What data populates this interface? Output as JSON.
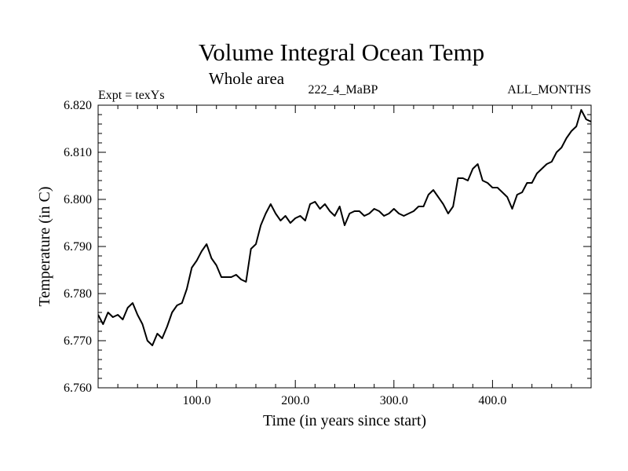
{
  "chart_data": {
    "type": "line",
    "title": "Volume Integral Ocean Temp",
    "subtitle": "Whole area",
    "header_left": "Expt = texYs",
    "header_center": "222_4_MaBP",
    "header_right": "ALL_MONTHS",
    "xlabel": "Time (in years since start)",
    "ylabel": "Temperature (in C)",
    "xlim": [
      0,
      500
    ],
    "ylim": [
      6.76,
      6.82
    ],
    "x_ticks": [
      100,
      200,
      300,
      400
    ],
    "x_tick_labels": [
      "100.0",
      "200.0",
      "300.0",
      "400.0"
    ],
    "y_ticks": [
      6.76,
      6.77,
      6.78,
      6.79,
      6.8,
      6.81,
      6.82
    ],
    "y_tick_labels": [
      "6.760",
      "6.770",
      "6.780",
      "6.790",
      "6.800",
      "6.810",
      "6.820"
    ],
    "grid": false,
    "series": [
      {
        "color": "#000000",
        "x": [
          0,
          5,
          10,
          15,
          20,
          25,
          30,
          35,
          40,
          45,
          50,
          55,
          60,
          65,
          70,
          75,
          80,
          85,
          90,
          95,
          100,
          105,
          110,
          115,
          120,
          125,
          130,
          135,
          140,
          145,
          150,
          155,
          160,
          165,
          170,
          175,
          180,
          185,
          190,
          195,
          200,
          205,
          210,
          215,
          220,
          225,
          230,
          235,
          240,
          245,
          250,
          255,
          260,
          265,
          270,
          275,
          280,
          285,
          290,
          295,
          300,
          305,
          310,
          315,
          320,
          325,
          330,
          335,
          340,
          345,
          350,
          355,
          360,
          365,
          370,
          375,
          380,
          385,
          390,
          395,
          400,
          405,
          410,
          415,
          420,
          425,
          430,
          435,
          440,
          445,
          450,
          455,
          460,
          465,
          470,
          475,
          480,
          485,
          490,
          495,
          500
        ],
        "values": [
          6.7755,
          6.7735,
          6.776,
          6.775,
          6.7755,
          6.7745,
          6.777,
          6.778,
          6.7755,
          6.7735,
          6.77,
          6.769,
          6.7715,
          6.7705,
          6.773,
          6.776,
          6.7775,
          6.778,
          6.781,
          6.7855,
          6.787,
          6.789,
          6.7905,
          6.7875,
          6.786,
          6.7835,
          6.7835,
          6.7835,
          6.784,
          6.783,
          6.7825,
          6.7895,
          6.7905,
          6.7945,
          6.797,
          6.799,
          6.797,
          6.7955,
          6.7965,
          6.795,
          6.796,
          6.7965,
          6.7955,
          6.799,
          6.7995,
          6.798,
          6.799,
          6.7975,
          6.7965,
          6.7985,
          6.7945,
          6.797,
          6.7975,
          6.7975,
          6.7965,
          6.797,
          6.798,
          6.7975,
          6.7965,
          6.797,
          6.798,
          6.797,
          6.7965,
          6.797,
          6.7975,
          6.7985,
          6.7985,
          6.801,
          6.802,
          6.8005,
          6.799,
          6.797,
          6.7985,
          6.8045,
          6.8045,
          6.804,
          6.8065,
          6.8075,
          6.804,
          6.8035,
          6.8025,
          6.8025,
          6.8015,
          6.8005,
          6.798,
          6.801,
          6.8015,
          6.8035,
          6.8035,
          6.8055,
          6.8065,
          6.8075,
          6.808,
          6.81,
          6.811,
          6.813,
          6.8145,
          6.8155,
          6.819,
          6.817,
          6.8165
        ]
      }
    ]
  }
}
